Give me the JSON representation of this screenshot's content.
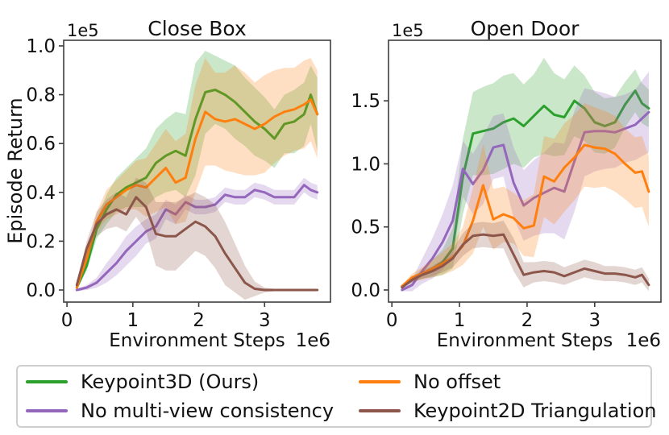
{
  "figure": {
    "ylabel": "Episode Return",
    "background": "#ffffff",
    "spine_color": "#3d3d3d",
    "band_opacity": 0.25
  },
  "legend": {
    "items": [
      {
        "label": "Keypoint3D (Ours)",
        "color": "#2ca02c",
        "slug": "keypoint3d-ours"
      },
      {
        "label": "No offset",
        "color": "#ff7f0e",
        "slug": "no-offset"
      },
      {
        "label": "No multi-view consistency",
        "color": "#9467bd",
        "slug": "no-multi-view-consistency"
      },
      {
        "label": "Keypoint2D Triangulation",
        "color": "#8c564b",
        "slug": "keypoint2d-triangulation"
      }
    ]
  },
  "chart_data": [
    {
      "type": "line",
      "title": "Close Box",
      "slug": "close-box",
      "xlabel": "Environment Steps",
      "ylabel": "Episode Return",
      "x_offset_text": "1e6",
      "y_offset_text": "1e5",
      "units_note": "x values are environment steps in units of 1e6; y values are episode return in units of 1e5; shaded bands are mean plus/minus spread",
      "xlim": [
        -0.05,
        4.0
      ],
      "ylim": [
        -0.0495,
        1.023
      ],
      "xticks": [
        {
          "value": 0,
          "label": "0"
        },
        {
          "value": 1,
          "label": "1"
        },
        {
          "value": 2,
          "label": "2"
        },
        {
          "value": 3,
          "label": "3"
        }
      ],
      "yticks": [
        {
          "value": 0.0,
          "label": "0.0"
        },
        {
          "value": 0.2,
          "label": "0.2"
        },
        {
          "value": 0.4,
          "label": "0.4"
        },
        {
          "value": 0.6,
          "label": "0.6"
        },
        {
          "value": 0.8,
          "label": "0.8"
        },
        {
          "value": 1.0,
          "label": "1.0"
        }
      ],
      "x": [
        0.15,
        0.3,
        0.45,
        0.6,
        0.75,
        0.9,
        1.05,
        1.2,
        1.35,
        1.5,
        1.65,
        1.8,
        1.95,
        2.1,
        2.25,
        2.4,
        2.55,
        2.7,
        2.85,
        3.0,
        3.15,
        3.3,
        3.45,
        3.6,
        3.7,
        3.8
      ],
      "series": [
        {
          "name": "Keypoint3D (Ours)",
          "slug": "keypoint3d-ours",
          "color": "#2ca02c",
          "mean": [
            0.01,
            0.1,
            0.25,
            0.33,
            0.39,
            0.42,
            0.44,
            0.46,
            0.52,
            0.55,
            0.57,
            0.55,
            0.7,
            0.81,
            0.82,
            0.8,
            0.77,
            0.73,
            0.69,
            0.66,
            0.62,
            0.68,
            0.69,
            0.72,
            0.8,
            0.72
          ],
          "spread": [
            0.01,
            0.02,
            0.04,
            0.06,
            0.07,
            0.08,
            0.1,
            0.12,
            0.14,
            0.15,
            0.16,
            0.17,
            0.23,
            0.17,
            0.14,
            0.14,
            0.15,
            0.14,
            0.14,
            0.13,
            0.12,
            0.12,
            0.13,
            0.13,
            0.12,
            0.15
          ]
        },
        {
          "name": "No multi-view consistency",
          "slug": "no-multi-view-consistency",
          "color": "#9467bd",
          "mean": [
            0.0,
            0.01,
            0.03,
            0.07,
            0.11,
            0.16,
            0.2,
            0.24,
            0.26,
            0.33,
            0.31,
            0.36,
            0.34,
            0.34,
            0.35,
            0.39,
            0.38,
            0.38,
            0.41,
            0.4,
            0.38,
            0.38,
            0.38,
            0.43,
            0.41,
            0.4
          ],
          "spread": [
            0.005,
            0.01,
            0.02,
            0.04,
            0.05,
            0.06,
            0.06,
            0.05,
            0.05,
            0.04,
            0.04,
            0.03,
            0.03,
            0.03,
            0.03,
            0.03,
            0.03,
            0.03,
            0.03,
            0.03,
            0.03,
            0.03,
            0.03,
            0.03,
            0.03,
            0.03
          ]
        },
        {
          "name": "No offset",
          "slug": "no-offset",
          "color": "#ff7f0e",
          "mean": [
            0.01,
            0.13,
            0.28,
            0.35,
            0.38,
            0.41,
            0.43,
            0.42,
            0.46,
            0.5,
            0.44,
            0.46,
            0.62,
            0.73,
            0.7,
            0.69,
            0.7,
            0.68,
            0.66,
            0.68,
            0.71,
            0.73,
            0.74,
            0.76,
            0.78,
            0.72
          ],
          "spread": [
            0.01,
            0.02,
            0.04,
            0.06,
            0.07,
            0.08,
            0.1,
            0.12,
            0.14,
            0.16,
            0.17,
            0.18,
            0.22,
            0.22,
            0.19,
            0.2,
            0.22,
            0.21,
            0.19,
            0.2,
            0.19,
            0.18,
            0.17,
            0.18,
            0.17,
            0.18
          ]
        },
        {
          "name": "Keypoint2D Triangulation",
          "slug": "keypoint2d-triangulation",
          "color": "#8c564b",
          "mean": [
            0.02,
            0.17,
            0.27,
            0.31,
            0.33,
            0.31,
            0.38,
            0.34,
            0.23,
            0.22,
            0.22,
            0.25,
            0.28,
            0.26,
            0.22,
            0.15,
            0.09,
            0.03,
            0.005,
            0,
            0,
            0,
            0,
            0,
            0,
            0
          ],
          "spread": [
            0.01,
            0.03,
            0.05,
            0.06,
            0.07,
            0.07,
            0.08,
            0.1,
            0.13,
            0.14,
            0.14,
            0.13,
            0.12,
            0.12,
            0.13,
            0.13,
            0.1,
            0.07,
            0.03,
            0.01,
            0.005,
            0.005,
            0.005,
            0.005,
            0.005,
            0.005
          ]
        }
      ]
    },
    {
      "type": "line",
      "title": "Open Door",
      "slug": "open-door",
      "xlabel": "Environment Steps",
      "x_offset_text": "1e6",
      "y_offset_text": "1e5",
      "units_note": "x values are environment steps in units of 1e6; y values are episode return in units of 1e5; shaded bands are mean plus/minus spread",
      "xlim": [
        -0.05,
        3.98
      ],
      "ylim": [
        -0.096,
        1.98
      ],
      "xticks": [
        {
          "value": 0,
          "label": "0"
        },
        {
          "value": 1,
          "label": "1"
        },
        {
          "value": 2,
          "label": "2"
        },
        {
          "value": 3,
          "label": "3"
        }
      ],
      "yticks": [
        {
          "value": 0.0,
          "label": "0.0"
        },
        {
          "value": 0.5,
          "label": "0.5"
        },
        {
          "value": 1.0,
          "label": "1.0"
        },
        {
          "value": 1.5,
          "label": "1.5"
        }
      ],
      "x": [
        0.15,
        0.3,
        0.45,
        0.6,
        0.75,
        0.9,
        1.05,
        1.2,
        1.35,
        1.5,
        1.65,
        1.8,
        1.95,
        2.1,
        2.25,
        2.4,
        2.55,
        2.7,
        2.85,
        3.0,
        3.15,
        3.3,
        3.45,
        3.6,
        3.7,
        3.8
      ],
      "series": [
        {
          "name": "Keypoint3D (Ours)",
          "slug": "keypoint3d-ours",
          "color": "#2ca02c",
          "mean": [
            0.03,
            0.08,
            0.13,
            0.17,
            0.22,
            0.33,
            0.9,
            1.24,
            1.26,
            1.28,
            1.33,
            1.36,
            1.3,
            1.38,
            1.46,
            1.39,
            1.37,
            1.5,
            1.44,
            1.33,
            1.3,
            1.33,
            1.47,
            1.58,
            1.48,
            1.44
          ],
          "spread": [
            0.01,
            0.02,
            0.04,
            0.07,
            0.1,
            0.16,
            0.3,
            0.33,
            0.35,
            0.36,
            0.37,
            0.36,
            0.33,
            0.33,
            0.38,
            0.33,
            0.3,
            0.28,
            0.26,
            0.24,
            0.22,
            0.2,
            0.18,
            0.17,
            0.16,
            0.15
          ]
        },
        {
          "name": "No multi-view consistency",
          "slug": "no-multi-view-consistency",
          "color": "#9467bd",
          "mean": [
            0.0,
            0.04,
            0.15,
            0.25,
            0.38,
            0.55,
            0.96,
            0.84,
            0.95,
            1.13,
            1.15,
            0.85,
            0.67,
            0.73,
            0.77,
            0.81,
            0.78,
            1.02,
            1.25,
            1.26,
            1.26,
            1.25,
            1.28,
            1.31,
            1.36,
            1.41
          ],
          "spread": [
            0.01,
            0.05,
            0.1,
            0.16,
            0.22,
            0.28,
            0.22,
            0.24,
            0.27,
            0.25,
            0.25,
            0.28,
            0.28,
            0.3,
            0.32,
            0.36,
            0.38,
            0.4,
            0.35,
            0.32,
            0.3,
            0.28,
            0.27,
            0.28,
            0.3,
            0.32
          ]
        },
        {
          "name": "No offset",
          "slug": "no-offset",
          "color": "#ff7f0e",
          "mean": [
            0.03,
            0.1,
            0.13,
            0.17,
            0.21,
            0.26,
            0.35,
            0.55,
            0.83,
            0.56,
            0.6,
            0.57,
            0.49,
            0.51,
            0.9,
            0.86,
            0.97,
            1.05,
            1.15,
            1.13,
            1.12,
            1.08,
            1.0,
            0.93,
            0.94,
            0.78
          ],
          "spread": [
            0.01,
            0.03,
            0.05,
            0.07,
            0.09,
            0.11,
            0.15,
            0.26,
            0.33,
            0.24,
            0.22,
            0.2,
            0.22,
            0.25,
            0.32,
            0.34,
            0.35,
            0.34,
            0.33,
            0.32,
            0.3,
            0.3,
            0.28,
            0.28,
            0.28,
            0.28
          ]
        },
        {
          "name": "Keypoint2D Triangulation",
          "slug": "keypoint2d-triangulation",
          "color": "#8c564b",
          "mean": [
            0.02,
            0.08,
            0.12,
            0.15,
            0.19,
            0.25,
            0.36,
            0.43,
            0.44,
            0.43,
            0.44,
            0.28,
            0.12,
            0.14,
            0.15,
            0.14,
            0.11,
            0.14,
            0.17,
            0.15,
            0.13,
            0.13,
            0.12,
            0.1,
            0.12,
            0.04
          ],
          "spread": [
            0.01,
            0.02,
            0.03,
            0.04,
            0.05,
            0.07,
            0.09,
            0.1,
            0.1,
            0.1,
            0.11,
            0.13,
            0.1,
            0.08,
            0.08,
            0.08,
            0.07,
            0.07,
            0.07,
            0.07,
            0.06,
            0.06,
            0.06,
            0.06,
            0.06,
            0.05
          ]
        }
      ]
    }
  ]
}
